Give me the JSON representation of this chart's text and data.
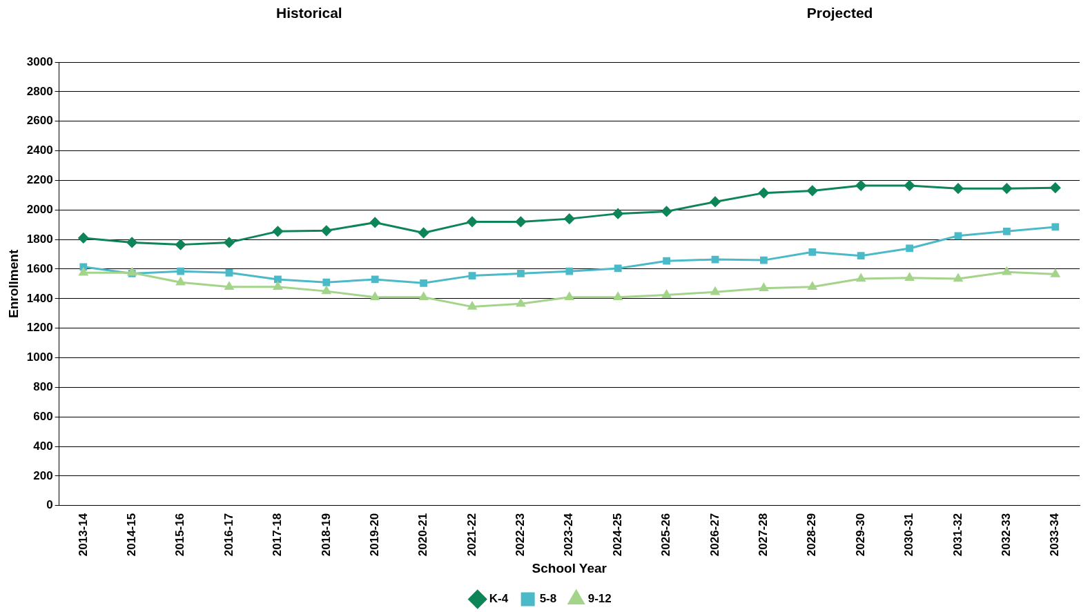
{
  "chart_data": {
    "type": "line",
    "annotations": [
      "Historical",
      "Projected"
    ],
    "xlabel": "School Year",
    "ylabel": "Enrollment",
    "categories": [
      "2013-14",
      "2014-15",
      "2015-16",
      "2016-17",
      "2017-18",
      "2018-19",
      "2019-20",
      "2020-21",
      "2021-22",
      "2022-23",
      "2023-24",
      "2024-25",
      "2025-26",
      "2026-27",
      "2027-28",
      "2028-29",
      "2029-30",
      "2030-31",
      "2031-32",
      "2032-33",
      "2033-34"
    ],
    "series": [
      {
        "name": "K-4",
        "color": "#0e8558",
        "marker": "diamond",
        "values": [
          1810,
          1780,
          1765,
          1780,
          1855,
          1860,
          1915,
          1845,
          1920,
          1920,
          1940,
          1975,
          1990,
          2055,
          2115,
          2130,
          2165,
          2165,
          2145,
          2145,
          2150
        ]
      },
      {
        "name": "5-8",
        "color": "#4bbac8",
        "marker": "square",
        "values": [
          1615,
          1570,
          1585,
          1575,
          1530,
          1510,
          1530,
          1505,
          1555,
          1570,
          1585,
          1605,
          1655,
          1665,
          1660,
          1715,
          1690,
          1740,
          1825,
          1855,
          1885
        ]
      },
      {
        "name": "9-12",
        "color": "#a3d48a",
        "marker": "triangle",
        "values": [
          1575,
          1575,
          1510,
          1480,
          1480,
          1450,
          1410,
          1410,
          1345,
          1365,
          1410,
          1410,
          1425,
          1445,
          1470,
          1480,
          1535,
          1540,
          1535,
          1580,
          1565
        ]
      }
    ],
    "ylim": [
      0,
      3000
    ],
    "yticks": [
      0,
      200,
      400,
      600,
      800,
      1000,
      1200,
      1400,
      1600,
      1800,
      2000,
      2200,
      2400,
      2600,
      2800,
      3000
    ],
    "grid": "y",
    "legend": "bottom",
    "line_style": "solid"
  }
}
